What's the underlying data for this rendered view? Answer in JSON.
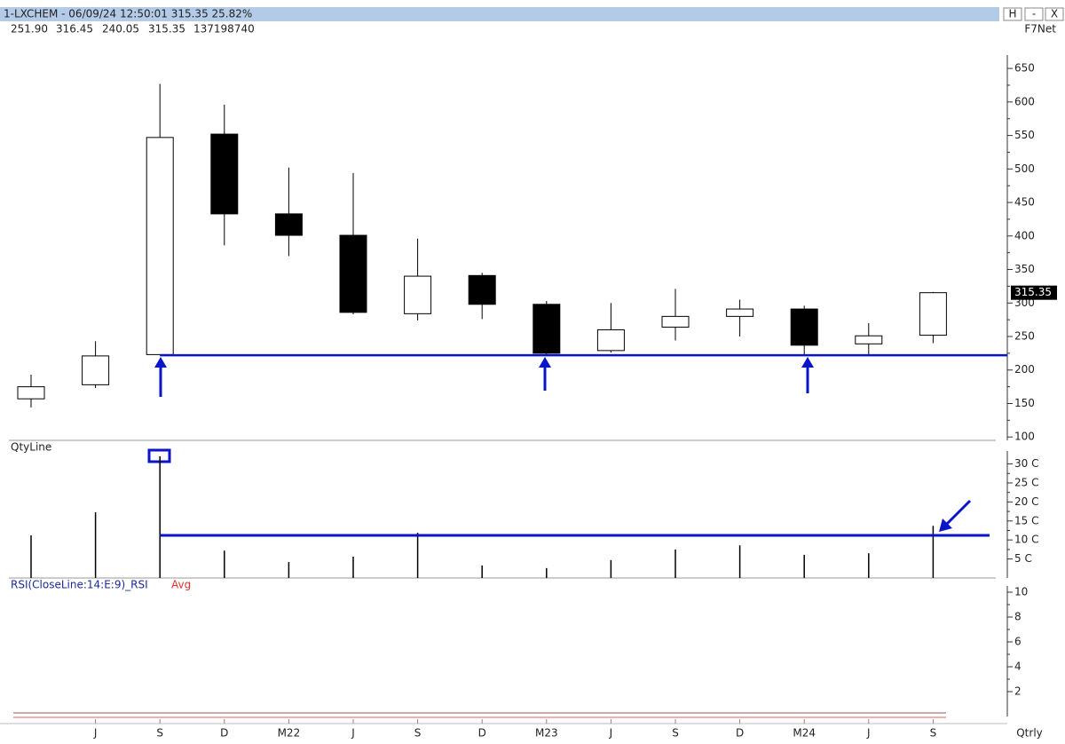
{
  "window": {
    "title": "1-LXCHEM - 06/09/24 12:50:01 315.35 25.82%",
    "buttons": [
      "H",
      "-",
      "X"
    ],
    "quote": [
      "251.90",
      "316.45",
      "240.05",
      "315.35",
      "137198740"
    ],
    "source": "F7Net"
  },
  "chart_data": [
    {
      "type": "candlestick",
      "categories": [
        null,
        "J",
        "S",
        "D",
        "M22",
        "J",
        "S",
        "D",
        "M23",
        "J",
        "S",
        "D",
        "M24",
        "J",
        "S"
      ],
      "open": [
        157,
        178,
        223,
        552,
        433,
        401,
        284,
        341,
        298,
        229,
        264,
        280,
        291,
        239,
        251.9
      ],
      "high": [
        193,
        243,
        627,
        596,
        502,
        494,
        396,
        345,
        303,
        300,
        321,
        305,
        296,
        270,
        316.45
      ],
      "low": [
        144,
        173,
        222,
        386,
        370,
        283,
        274,
        276,
        223,
        226,
        244,
        250,
        222,
        222,
        240.05
      ],
      "close": [
        175,
        221,
        547,
        433,
        401,
        286,
        340,
        298,
        225,
        260,
        280,
        291,
        237,
        251,
        315.35
      ],
      "up_color": "#ffffff",
      "down_color": "#000000",
      "ylim": [
        95,
        670
      ],
      "yticks": [
        100,
        150,
        200,
        250,
        300,
        350,
        400,
        450,
        500,
        550,
        600,
        650
      ],
      "hline": 222,
      "hline_color": "#0a14c8",
      "x_label": "Qtrly"
    },
    {
      "type": "bar",
      "title": "QtyLine",
      "color": "#000000",
      "values": [
        11.2,
        17.3,
        32,
        7.2,
        4.2,
        5.6,
        11.9,
        3.3,
        2.6,
        4.7,
        7.5,
        8.6,
        6.1,
        6.5,
        13.72
      ],
      "ylim": [
        0,
        33.4
      ],
      "yticks": [
        {
          "value": 5,
          "label": "5 C"
        },
        {
          "value": 10,
          "label": "10 C"
        },
        {
          "value": 15,
          "label": "15 C"
        },
        {
          "value": 20,
          "label": "20 C"
        },
        {
          "value": 25,
          "label": "25 C"
        },
        {
          "value": 30,
          "label": "30 C"
        }
      ],
      "hline": 11.2,
      "hline_color": "#0a14c8"
    },
    {
      "type": "line",
      "series": [
        {
          "name": "RSI(CloseLine:14:E:9)_RSI",
          "color": "#1a2a9a",
          "values": []
        },
        {
          "name": "Avg",
          "color": "#e03030",
          "values": []
        }
      ],
      "ylim": [
        0,
        10.5
      ],
      "yticks": [
        2,
        4,
        6,
        8,
        10
      ]
    }
  ]
}
